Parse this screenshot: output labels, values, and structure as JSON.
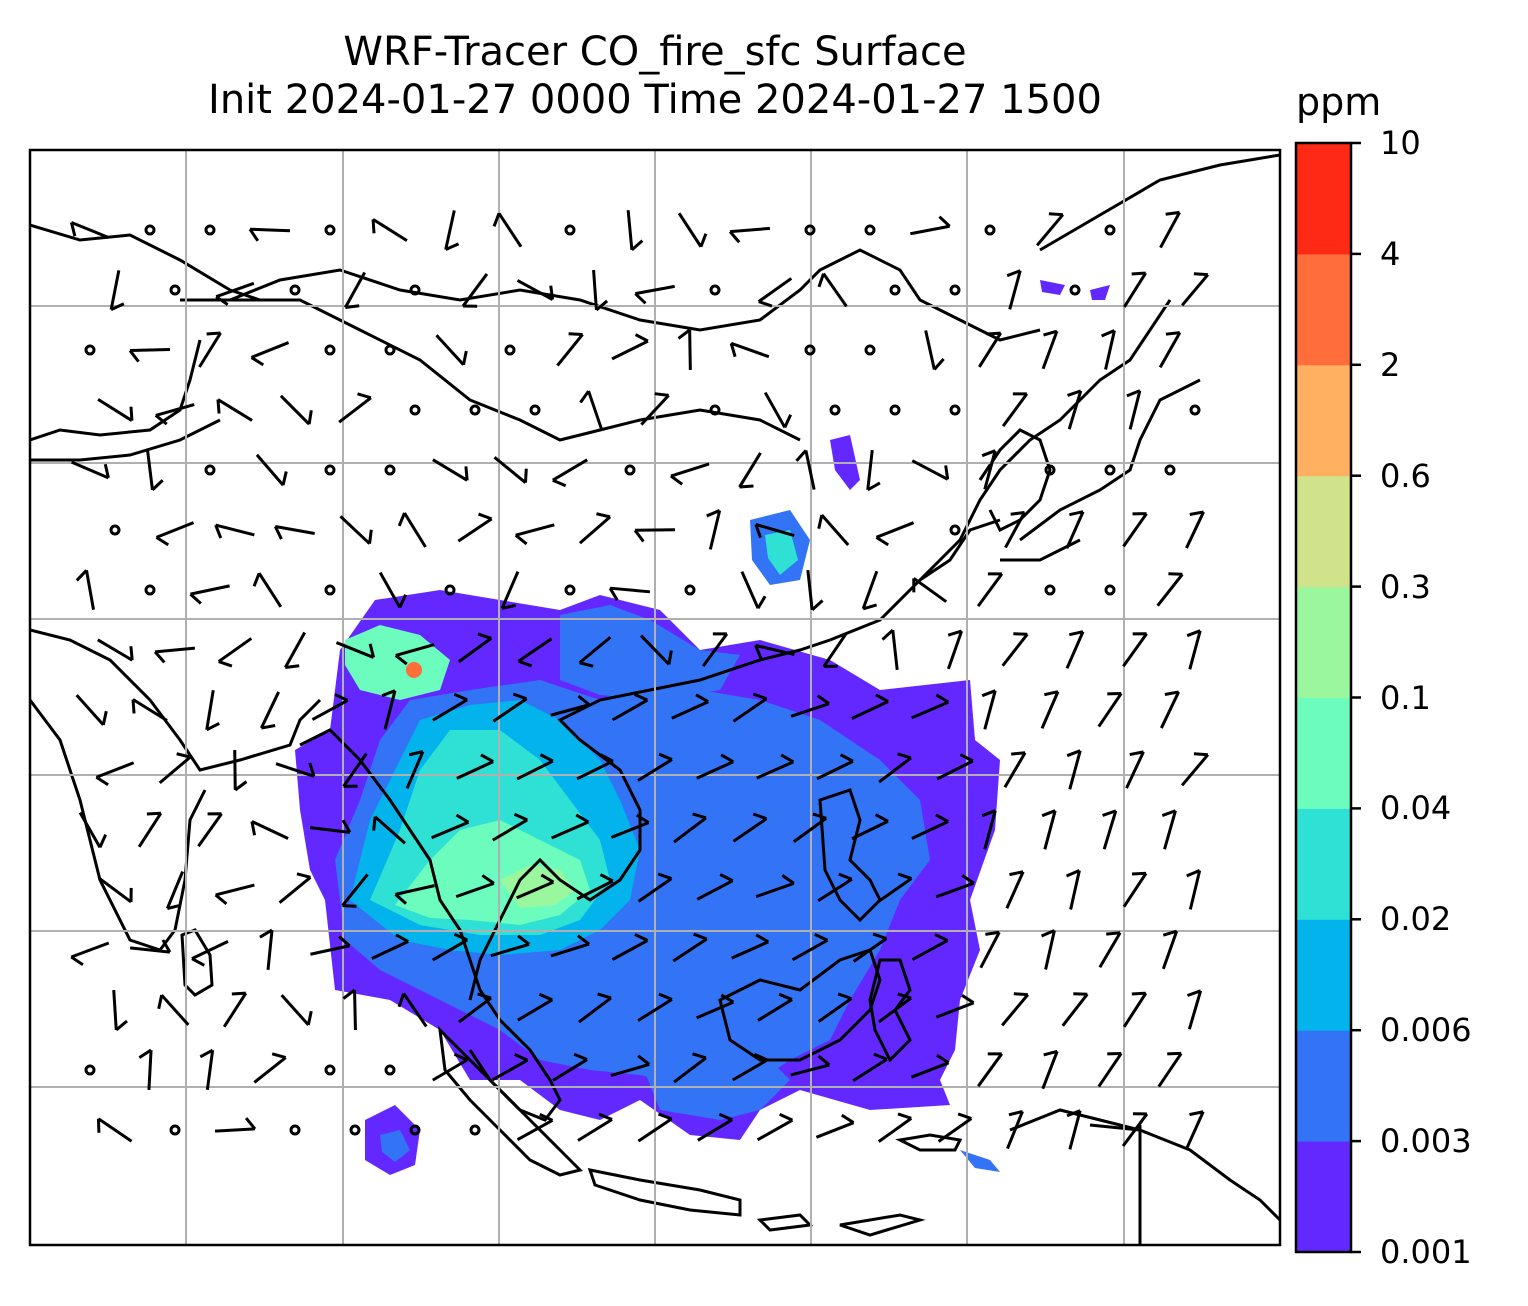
{
  "figure": {
    "title_line1": "WRF-Tracer CO_fire_sfc Surface",
    "title_line2": "Init 2024-01-27 0000 Time 2024-01-27 1500"
  },
  "colorbar": {
    "unit": "ppm",
    "levels": [
      "0.001",
      "0.003",
      "0.006",
      "0.02",
      "0.04",
      "0.1",
      "0.3",
      "0.6",
      "2",
      "4",
      "10"
    ],
    "colors": [
      "#6328ff",
      "#3373f5",
      "#03b3ec",
      "#2fe0d4",
      "#6cfcbd",
      "#9bf79e",
      "#d0e28a",
      "#ffb061",
      "#ff6d3b",
      "#ff2a16"
    ]
  },
  "map": {
    "land_outline_color": "#000000",
    "gridline_color": "#b0b0b0",
    "wind_barb_color": "#000000"
  }
}
